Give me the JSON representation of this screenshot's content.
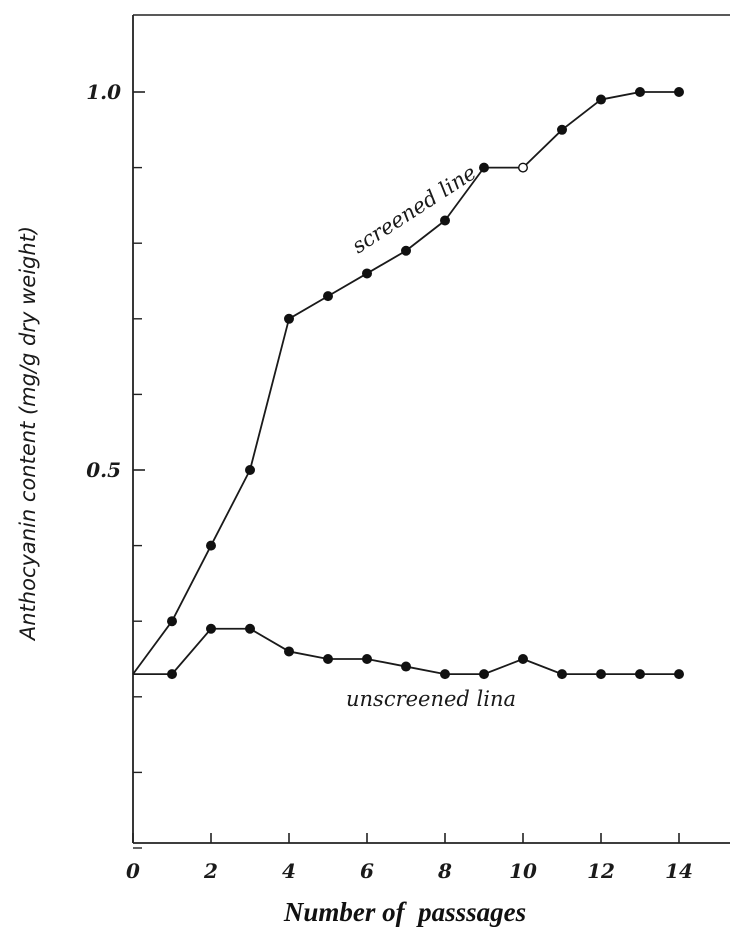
{
  "chart_data": {
    "type": "line",
    "title": "",
    "xlabel": "Number of  passsages",
    "ylabel": "Anthocyanin content (mg/g dry weight)",
    "xlim": [
      0,
      15.5
    ],
    "ylim": [
      -0.15,
      1.1
    ],
    "x_ticks": [
      0,
      2,
      4,
      6,
      8,
      10,
      12,
      14
    ],
    "x_tick_labels": [
      "0",
      "2",
      "4",
      "6",
      "8",
      "10",
      "12",
      "14"
    ],
    "y_ticks": [
      0.5,
      1.0
    ],
    "y_tick_labels": [
      "0.5",
      "1.0"
    ],
    "y_minor_ticks": [
      0.0,
      0.1,
      0.2,
      0.3,
      0.4,
      0.6,
      0.7,
      0.8,
      0.9
    ],
    "grid": false,
    "series": [
      {
        "name": "screened line",
        "x": [
          0,
          1,
          2,
          3,
          4,
          5,
          6,
          7,
          8,
          9,
          10,
          11,
          12,
          13,
          14
        ],
        "values": [
          0.23,
          0.3,
          0.4,
          0.5,
          0.7,
          0.73,
          0.76,
          0.79,
          0.83,
          0.9,
          0.9,
          0.95,
          0.99,
          1.0,
          1.0
        ],
        "open_markers": [
          10
        ]
      },
      {
        "name": "unscreened lina",
        "x": [
          0,
          1,
          2,
          3,
          4,
          5,
          6,
          7,
          8,
          9,
          10,
          11,
          12,
          13,
          14
        ],
        "values": [
          0.23,
          0.23,
          0.29,
          0.29,
          0.26,
          0.25,
          0.25,
          0.24,
          0.23,
          0.23,
          0.25,
          0.23,
          0.23,
          0.23,
          0.23
        ],
        "open_markers": []
      }
    ],
    "annotations": [
      "screened line",
      "unscreened lina"
    ]
  }
}
